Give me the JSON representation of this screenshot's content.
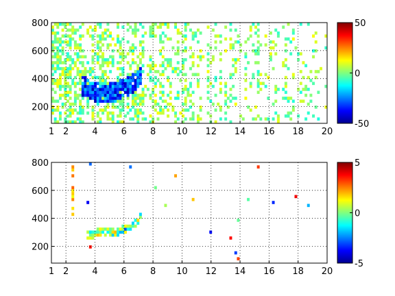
{
  "chart_data": [
    {
      "type": "heatmap",
      "title": "",
      "xlabel": "",
      "ylabel": "",
      "xlim": [
        1,
        20
      ],
      "ylim": [
        80,
        800
      ],
      "xticks": [
        1,
        2,
        4,
        6,
        8,
        10,
        12,
        14,
        16,
        18,
        20
      ],
      "yticks": [
        200,
        400,
        600,
        800
      ],
      "grid": true,
      "colormap": "jet",
      "clim": [
        -50,
        50
      ],
      "colorbar_ticks": [
        -50,
        0,
        50
      ],
      "features": [
        {
          "shape": "curve",
          "x": [
            3.3,
            4.0,
            4.6,
            5.2,
            5.8,
            6.3,
            6.8,
            7.2
          ],
          "y": [
            350,
            305,
            290,
            300,
            320,
            345,
            380,
            430
          ],
          "value": -30
        },
        {
          "shape": "vertical_streaks",
          "x_range": [
            1,
            20
          ],
          "y_range": [
            80,
            800
          ],
          "density_decreasing_with_x": true
        }
      ]
    },
    {
      "type": "heatmap",
      "title": "",
      "xlabel": "",
      "ylabel": "",
      "xlim": [
        1,
        20
      ],
      "ylim": [
        80,
        800
      ],
      "xticks": [
        1,
        2,
        4,
        6,
        8,
        10,
        12,
        14,
        16,
        18,
        20
      ],
      "yticks": [
        200,
        400,
        600,
        800
      ],
      "grid": true,
      "colormap": "jet",
      "clim": [
        -5,
        5
      ],
      "colorbar_ticks": [
        -5,
        0,
        5
      ],
      "features": [
        {
          "shape": "curve",
          "x": [
            3.6,
            4.2,
            4.8,
            5.4,
            6.0,
            6.5,
            6.9,
            7.1
          ],
          "y": [
            280,
            295,
            300,
            305,
            320,
            345,
            380,
            430
          ],
          "value": 0
        },
        {
          "shape": "vertical_line",
          "x": 2.5,
          "y_range": [
            400,
            760
          ],
          "value": 2
        }
      ]
    }
  ],
  "tick_labels": {
    "top": {
      "x": [
        "1",
        "2",
        "4",
        "6",
        "8",
        "10",
        "12",
        "14",
        "16",
        "18",
        "20"
      ],
      "y": [
        "200",
        "400",
        "600",
        "800"
      ],
      "cbar": [
        "-50",
        "0",
        "50"
      ]
    },
    "bottom": {
      "x": [
        "1",
        "2",
        "4",
        "6",
        "8",
        "10",
        "12",
        "14",
        "16",
        "18",
        "20"
      ],
      "y": [
        "200",
        "400",
        "600",
        "800"
      ],
      "cbar": [
        "-5",
        "0",
        "5"
      ]
    }
  }
}
